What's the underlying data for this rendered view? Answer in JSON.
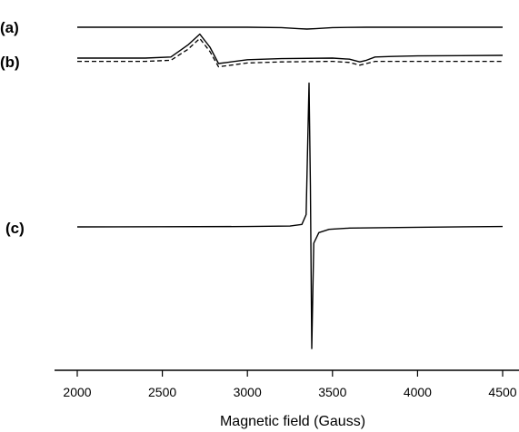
{
  "chart_data": {
    "type": "line",
    "xlabel": "Magnetic field (Gauss)",
    "ylabel": "",
    "xlim": [
      1950,
      4550
    ],
    "xticks": [
      2000,
      2500,
      3000,
      3500,
      4000,
      4500
    ],
    "xtick_labels": [
      "2000",
      "2500",
      "3000",
      "3500",
      "4000",
      "4500"
    ],
    "grid": false,
    "legend": "none",
    "panels": [
      {
        "label": "(a)",
        "series": [
          {
            "style": "solid",
            "x": [
              2000,
              2500,
              3000,
              3200,
              3300,
              3350,
              3400,
              3500,
              3700,
              4000,
              4500
            ],
            "y": [
              0.0,
              0.0,
              0.0,
              -0.05,
              -0.2,
              -0.25,
              -0.2,
              -0.05,
              0.0,
              0.0,
              0.0
            ]
          }
        ]
      },
      {
        "label": "(b)",
        "series": [
          {
            "style": "solid",
            "x": [
              2000,
              2400,
              2550,
              2650,
              2720,
              2780,
              2830,
              2880,
              3000,
              3200,
              3500,
              3600,
              3660,
              3700,
              3750,
              3850,
              4000,
              4500
            ],
            "y": [
              0.0,
              0.0,
              0.1,
              1.2,
              2.2,
              1.0,
              -0.5,
              -0.4,
              -0.15,
              -0.05,
              0.0,
              -0.1,
              -0.35,
              -0.2,
              0.1,
              0.15,
              0.2,
              0.25
            ]
          },
          {
            "style": "dashed",
            "x": [
              2000,
              2400,
              2550,
              2650,
              2720,
              2780,
              2830,
              2880,
              3000,
              3200,
              3500,
              3600,
              3660,
              3700,
              3750,
              3850,
              4000,
              4500
            ],
            "y": [
              -0.3,
              -0.3,
              -0.2,
              0.8,
              1.8,
              0.6,
              -0.8,
              -0.7,
              -0.45,
              -0.35,
              -0.3,
              -0.4,
              -0.65,
              -0.5,
              -0.3,
              -0.3,
              -0.3,
              -0.3
            ]
          }
        ]
      },
      {
        "label": "(c)",
        "series": [
          {
            "style": "solid",
            "x": [
              2000,
              2500,
              3000,
              3250,
              3320,
              3345,
              3362,
              3370,
              3378,
              3390,
              3420,
              3480,
              3600,
              4000,
              4500
            ],
            "y": [
              0.0,
              0.02,
              0.05,
              0.1,
              0.3,
              1.5,
              17.6,
              5.0,
              -14.9,
              -2.0,
              -0.7,
              -0.3,
              -0.15,
              -0.05,
              0.05
            ]
          }
        ]
      }
    ]
  }
}
